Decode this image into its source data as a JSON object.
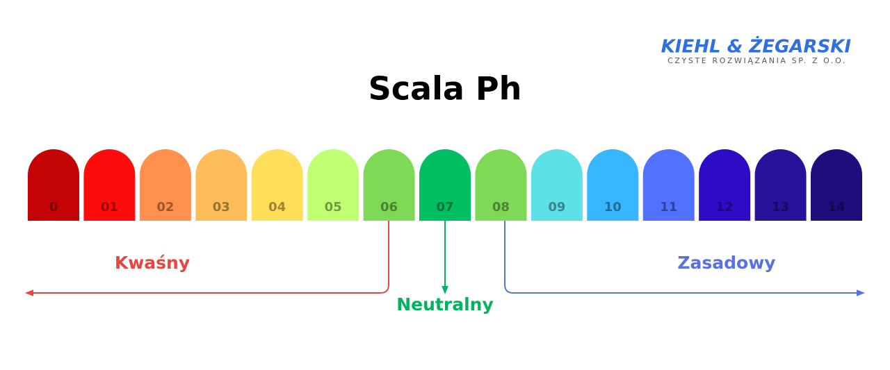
{
  "logo": {
    "name": "KIEHL & ŻEGARSKI",
    "tagline": "CZYSTE ROZWIĄZANIA SP. Z O.O."
  },
  "title": "Scala Ph",
  "swatches": [
    {
      "label": "0",
      "color": "#c40404"
    },
    {
      "label": "01",
      "color": "#fe0b0b"
    },
    {
      "label": "02",
      "color": "#ff914d"
    },
    {
      "label": "03",
      "color": "#ffbd59"
    },
    {
      "label": "04",
      "color": "#ffde59"
    },
    {
      "label": "05",
      "color": "#c1ff72"
    },
    {
      "label": "06",
      "color": "#7ed957"
    },
    {
      "label": "07",
      "color": "#00bf63"
    },
    {
      "label": "08",
      "color": "#7ed957"
    },
    {
      "label": "09",
      "color": "#5ce1e6"
    },
    {
      "label": "10",
      "color": "#38b6ff"
    },
    {
      "label": "11",
      "color": "#5271ff"
    },
    {
      "label": "12",
      "color": "#2e0cc6"
    },
    {
      "label": "13",
      "color": "#27129a"
    },
    {
      "label": "14",
      "color": "#1f0d7c"
    }
  ],
  "zones": {
    "acid": "Kwaśny",
    "neutral": "Neutralny",
    "base": "Zasadowy"
  }
}
